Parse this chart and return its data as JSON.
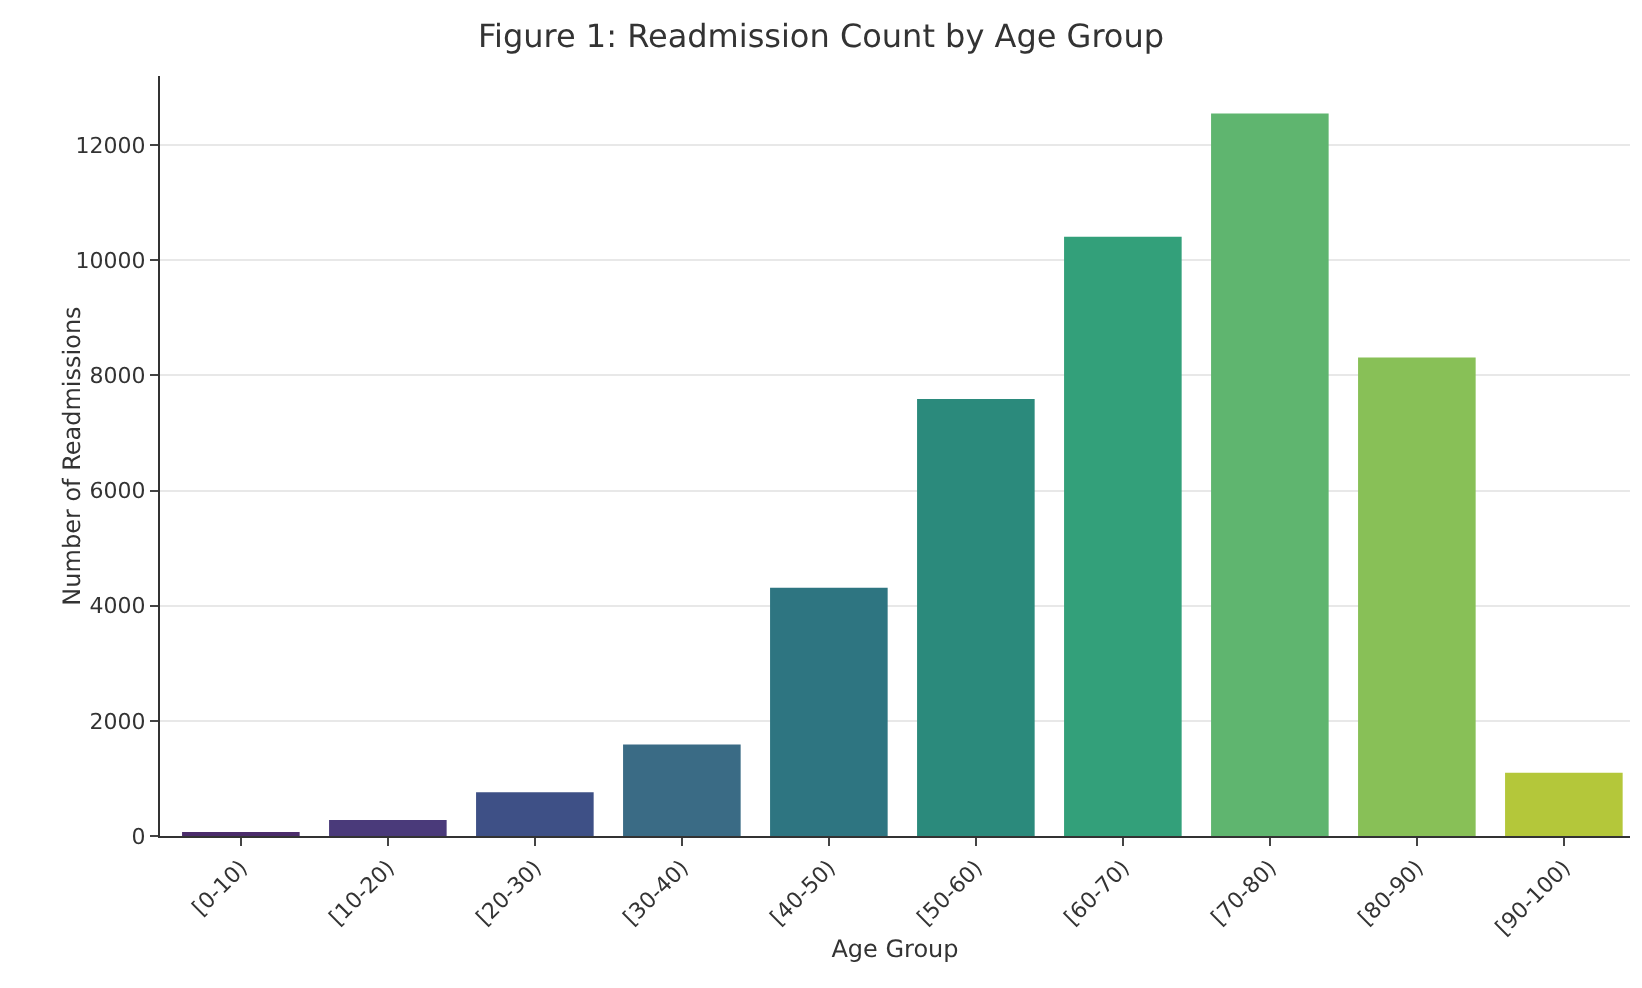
{
  "chart_data": {
    "type": "bar",
    "title": "Figure 1: Readmission Count by Age Group",
    "xlabel": "Age Group",
    "ylabel": "Number of Readmissions",
    "categories": [
      "[0-10)",
      "[10-20)",
      "[20-30)",
      "[30-40)",
      "[40-50)",
      "[50-60)",
      "[60-70)",
      "[70-80)",
      "[80-90)",
      "[90-100)"
    ],
    "values": [
      60,
      280,
      760,
      1590,
      4310,
      7590,
      10410,
      12550,
      8310,
      1100
    ],
    "colors": [
      "#4b2c6b",
      "#4a3a7a",
      "#3e5086",
      "#3a6b85",
      "#2e7581",
      "#2b8a7c",
      "#33a07a",
      "#5fb56f",
      "#88c057",
      "#b4c73a"
    ],
    "ylim": [
      0,
      13200
    ],
    "yticks": [
      0,
      2000,
      4000,
      6000,
      8000,
      10000,
      12000
    ],
    "grid": "y"
  }
}
